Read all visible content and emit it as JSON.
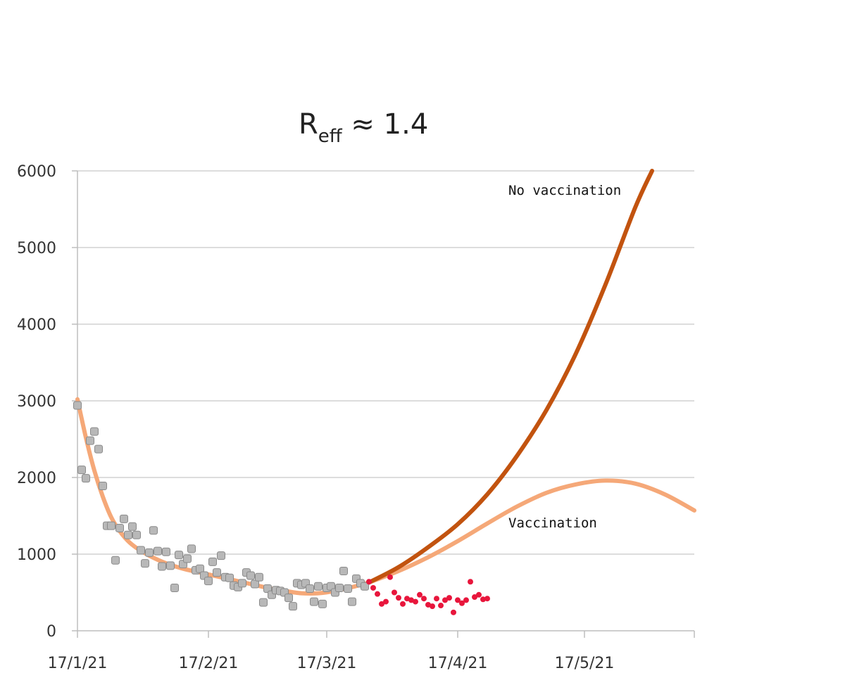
{
  "chart_data": {
    "type": "scatter",
    "title_main": "R",
    "title_sub": "eff",
    "title_rest": " ≈ 1.4",
    "xlabel": "",
    "ylabel": "",
    "ylim": [
      0,
      6000
    ],
    "xlim": [
      "2021-01-17",
      "2021-06-12"
    ],
    "yticks": [
      0,
      1000,
      2000,
      3000,
      4000,
      5000,
      6000
    ],
    "xticks": [
      {
        "date": "2021-01-17",
        "label": "17/1/21"
      },
      {
        "date": "2021-02-17",
        "label": "17/2/21"
      },
      {
        "date": "2021-03-17",
        "label": "17/3/21"
      },
      {
        "date": "2021-04-17",
        "label": "17/4/21"
      },
      {
        "date": "2021-05-17",
        "label": "17/5/21"
      }
    ],
    "grid": "horizontal",
    "colors": {
      "observed": "#b8b8b8",
      "observed_edge": "#8a8a8a",
      "recent": "#e8163c",
      "fit": "#f5a878",
      "no_vaccination": "#c2530f",
      "vaccination": "#f5a878",
      "grid": "#d2d2d2",
      "axis": "#bdbdbd"
    },
    "annotations": [
      {
        "text": "No vaccination",
        "series": "no_vaccination"
      },
      {
        "text": "Vaccination",
        "series": "vaccination"
      }
    ],
    "series": [
      {
        "key": "observed",
        "type": "scatter",
        "points": [
          [
            "2021-01-17",
            2940
          ],
          [
            "2021-01-18",
            2100
          ],
          [
            "2021-01-19",
            1990
          ],
          [
            "2021-01-20",
            2480
          ],
          [
            "2021-01-21",
            2600
          ],
          [
            "2021-01-22",
            2370
          ],
          [
            "2021-01-23",
            1890
          ],
          [
            "2021-01-24",
            1370
          ],
          [
            "2021-01-25",
            1370
          ],
          [
            "2021-01-26",
            920
          ],
          [
            "2021-01-27",
            1340
          ],
          [
            "2021-01-28",
            1460
          ],
          [
            "2021-01-29",
            1250
          ],
          [
            "2021-01-30",
            1360
          ],
          [
            "2021-01-31",
            1250
          ],
          [
            "2021-02-01",
            1050
          ],
          [
            "2021-02-02",
            880
          ],
          [
            "2021-02-03",
            1020
          ],
          [
            "2021-02-04",
            1310
          ],
          [
            "2021-02-05",
            1040
          ],
          [
            "2021-02-06",
            840
          ],
          [
            "2021-02-07",
            1030
          ],
          [
            "2021-02-08",
            850
          ],
          [
            "2021-02-09",
            560
          ],
          [
            "2021-02-10",
            990
          ],
          [
            "2021-02-11",
            870
          ],
          [
            "2021-02-12",
            940
          ],
          [
            "2021-02-13",
            1070
          ],
          [
            "2021-02-14",
            790
          ],
          [
            "2021-02-15",
            810
          ],
          [
            "2021-02-16",
            720
          ],
          [
            "2021-02-17",
            650
          ],
          [
            "2021-02-18",
            900
          ],
          [
            "2021-02-19",
            760
          ],
          [
            "2021-02-20",
            980
          ],
          [
            "2021-02-21",
            700
          ],
          [
            "2021-02-22",
            690
          ],
          [
            "2021-02-23",
            590
          ],
          [
            "2021-02-24",
            570
          ],
          [
            "2021-02-25",
            620
          ],
          [
            "2021-02-26",
            760
          ],
          [
            "2021-02-27",
            720
          ],
          [
            "2021-02-28",
            610
          ],
          [
            "2021-03-01",
            700
          ],
          [
            "2021-03-02",
            370
          ],
          [
            "2021-03-03",
            550
          ],
          [
            "2021-03-04",
            470
          ],
          [
            "2021-03-05",
            530
          ],
          [
            "2021-03-06",
            520
          ],
          [
            "2021-03-07",
            500
          ],
          [
            "2021-03-08",
            430
          ],
          [
            "2021-03-09",
            320
          ],
          [
            "2021-03-10",
            620
          ],
          [
            "2021-03-11",
            600
          ],
          [
            "2021-03-12",
            620
          ],
          [
            "2021-03-13",
            550
          ],
          [
            "2021-03-14",
            380
          ],
          [
            "2021-03-15",
            580
          ],
          [
            "2021-03-16",
            350
          ],
          [
            "2021-03-17",
            560
          ],
          [
            "2021-03-18",
            580
          ],
          [
            "2021-03-19",
            500
          ],
          [
            "2021-03-20",
            560
          ],
          [
            "2021-03-21",
            780
          ],
          [
            "2021-03-22",
            550
          ],
          [
            "2021-03-23",
            380
          ],
          [
            "2021-03-24",
            680
          ],
          [
            "2021-03-25",
            620
          ],
          [
            "2021-03-26",
            580
          ]
        ]
      },
      {
        "key": "recent",
        "type": "scatter",
        "points": [
          [
            "2021-03-27",
            640
          ],
          [
            "2021-03-28",
            560
          ],
          [
            "2021-03-29",
            480
          ],
          [
            "2021-03-30",
            350
          ],
          [
            "2021-03-31",
            380
          ],
          [
            "2021-04-01",
            700
          ],
          [
            "2021-04-02",
            500
          ],
          [
            "2021-04-03",
            430
          ],
          [
            "2021-04-04",
            350
          ],
          [
            "2021-04-05",
            420
          ],
          [
            "2021-04-06",
            400
          ],
          [
            "2021-04-07",
            380
          ],
          [
            "2021-04-08",
            470
          ],
          [
            "2021-04-09",
            420
          ],
          [
            "2021-04-10",
            340
          ],
          [
            "2021-04-11",
            320
          ],
          [
            "2021-04-12",
            420
          ],
          [
            "2021-04-13",
            330
          ],
          [
            "2021-04-14",
            400
          ],
          [
            "2021-04-15",
            430
          ],
          [
            "2021-04-16",
            240
          ],
          [
            "2021-04-17",
            400
          ],
          [
            "2021-04-18",
            360
          ],
          [
            "2021-04-19",
            400
          ],
          [
            "2021-04-20",
            640
          ],
          [
            "2021-04-21",
            440
          ],
          [
            "2021-04-22",
            470
          ],
          [
            "2021-04-23",
            410
          ],
          [
            "2021-04-24",
            420
          ]
        ]
      },
      {
        "key": "fit",
        "type": "line",
        "points": [
          [
            "2021-01-17",
            3020
          ],
          [
            "2021-01-19",
            2520
          ],
          [
            "2021-01-21",
            2090
          ],
          [
            "2021-01-23",
            1750
          ],
          [
            "2021-01-25",
            1480
          ],
          [
            "2021-01-27",
            1300
          ],
          [
            "2021-01-29",
            1170
          ],
          [
            "2021-01-31",
            1080
          ],
          [
            "2021-02-03",
            980
          ],
          [
            "2021-02-07",
            880
          ],
          [
            "2021-02-11",
            810
          ],
          [
            "2021-02-15",
            760
          ],
          [
            "2021-02-19",
            710
          ],
          [
            "2021-02-23",
            660
          ],
          [
            "2021-02-27",
            610
          ],
          [
            "2021-03-03",
            560
          ],
          [
            "2021-03-07",
            520
          ],
          [
            "2021-03-11",
            490
          ],
          [
            "2021-03-15",
            490
          ],
          [
            "2021-03-19",
            520
          ],
          [
            "2021-03-23",
            570
          ],
          [
            "2021-03-27",
            630
          ]
        ]
      },
      {
        "key": "no_vaccination",
        "type": "line",
        "points": [
          [
            "2021-03-27",
            630
          ],
          [
            "2021-04-03",
            830
          ],
          [
            "2021-04-10",
            1090
          ],
          [
            "2021-04-17",
            1390
          ],
          [
            "2021-04-24",
            1780
          ],
          [
            "2021-05-01",
            2280
          ],
          [
            "2021-05-08",
            2880
          ],
          [
            "2021-05-15",
            3620
          ],
          [
            "2021-05-22",
            4520
          ],
          [
            "2021-05-29",
            5520
          ],
          [
            "2021-06-02",
            6000
          ]
        ]
      },
      {
        "key": "vaccination",
        "type": "line",
        "points": [
          [
            "2021-03-27",
            630
          ],
          [
            "2021-04-03",
            780
          ],
          [
            "2021-04-10",
            960
          ],
          [
            "2021-04-17",
            1170
          ],
          [
            "2021-04-24",
            1400
          ],
          [
            "2021-05-01",
            1620
          ],
          [
            "2021-05-08",
            1800
          ],
          [
            "2021-05-15",
            1910
          ],
          [
            "2021-05-22",
            1960
          ],
          [
            "2021-05-29",
            1920
          ],
          [
            "2021-06-05",
            1780
          ],
          [
            "2021-06-12",
            1570
          ]
        ]
      }
    ]
  }
}
